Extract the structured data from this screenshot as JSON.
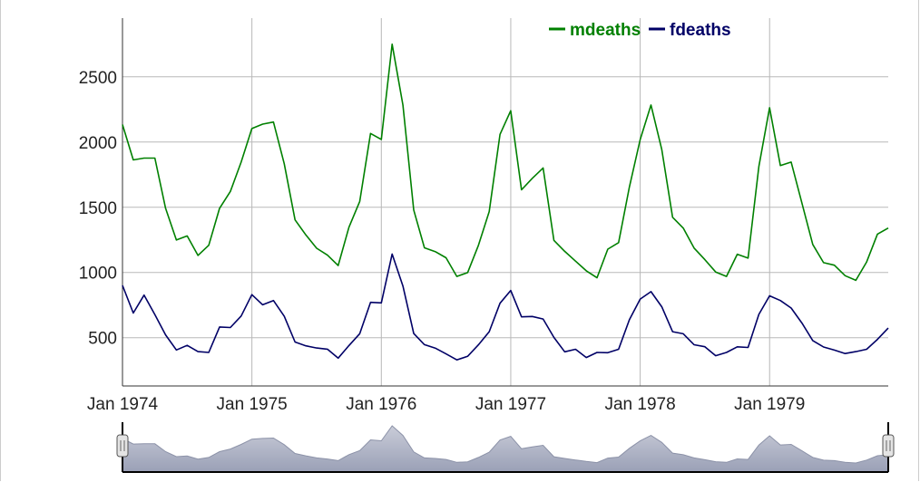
{
  "chart_data": {
    "type": "line",
    "legend_position": "top-right",
    "grid": true,
    "x_start": "Jan 1974",
    "frequency": "monthly",
    "xlim": [
      "Jan 1974",
      "Dec 1979"
    ],
    "ylim": [
      130,
      2950
    ],
    "y_ticks": [
      500,
      1000,
      1500,
      2000,
      2500
    ],
    "y_tick_labels": [
      "500",
      "1000",
      "1500",
      "2000",
      "2500"
    ],
    "x_tick_labels": [
      "Jan 1974",
      "Jan 1975",
      "Jan 1976",
      "Jan 1977",
      "Jan 1978",
      "Jan 1979"
    ],
    "series": [
      {
        "name": "mdeaths",
        "color": "#008000",
        "values": [
          2134,
          1863,
          1877,
          1877,
          1492,
          1249,
          1280,
          1131,
          1209,
          1492,
          1621,
          1846,
          2103,
          2137,
          2153,
          1833,
          1403,
          1288,
          1186,
          1133,
          1053,
          1347,
          1545,
          2066,
          2020,
          2750,
          2283,
          1479,
          1189,
          1160,
          1113,
          970,
          999,
          1208,
          1467,
          2059,
          2240,
          1634,
          1722,
          1801,
          1246,
          1162,
          1087,
          1013,
          959,
          1179,
          1229,
          1655,
          2019,
          2284,
          1942,
          1423,
          1340,
          1187,
          1098,
          1004,
          970,
          1140,
          1110,
          1812,
          2263,
          1820,
          1846,
          1531,
          1215,
          1075,
          1056,
          975,
          940,
          1081,
          1294,
          1341
        ]
      },
      {
        "name": "fdeaths",
        "color": "#000066",
        "values": [
          901,
          689,
          827,
          677,
          522,
          406,
          441,
          393,
          387,
          582,
          578,
          666,
          830,
          752,
          785,
          664,
          467,
          438,
          421,
          412,
          343,
          440,
          531,
          771,
          767,
          1141,
          896,
          532,
          447,
          420,
          376,
          330,
          357,
          445,
          546,
          764,
          862,
          660,
          663,
          643,
          502,
          392,
          411,
          348,
          387,
          385,
          411,
          638,
          796,
          853,
          737,
          546,
          530,
          446,
          431,
          362,
          387,
          430,
          425,
          679,
          821,
          785,
          727,
          612,
          478,
          429,
          405,
          379,
          393,
          411,
          487,
          574
        ]
      }
    ]
  },
  "range_selector": {
    "series_name": "mdeaths",
    "selection_start": "Jan 1974",
    "selection_end": "Dec 1979"
  }
}
